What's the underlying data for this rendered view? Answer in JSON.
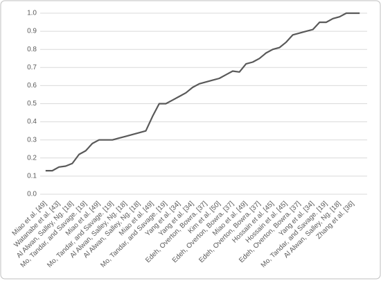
{
  "chart_data": {
    "type": "line",
    "categories": [
      "Miao et al. [49]",
      null,
      "Watanabe et al. [43]",
      null,
      "Al Alwan, Salley, Ng. [18]",
      null,
      "Mo, Tandar, and Savage. [19]",
      null,
      "Miao et al. [49]",
      null,
      "Mo, Tandar, and Savage. [19]",
      null,
      "Al Alwan, Salley, Ng. [18]",
      null,
      "Al Alwan, Salley, Ng. [18]",
      null,
      "Miao et al. [49]",
      null,
      "Mo, Tandar, and Savage. [19]",
      null,
      "Yang et al. [34]",
      null,
      "Yang et al. [34]",
      null,
      "Edeh, Overton, Bowra. [37]",
      null,
      "Kim et al. [50]",
      null,
      "Edeh, Overton, Bowra. [37]",
      null,
      "Miao et al. [49]",
      null,
      "Edeh, Overton, Bowra. [37]",
      null,
      "Hossain et al. [45]",
      null,
      "Hossain et al. [45]",
      null,
      "Edeh, Overton, Bowra. [37]",
      null,
      "Yang et al. [34]",
      null,
      "Mo, Tandar, and Savage. [19]",
      null,
      "Al Alwan, Salley, Ng. [18]",
      null,
      "Zhang et al. [36]",
      null
    ],
    "values": [
      0.13,
      0.13,
      0.15,
      0.155,
      0.17,
      0.22,
      0.24,
      0.28,
      0.3,
      0.3,
      0.3,
      0.31,
      0.32,
      0.33,
      0.34,
      0.35,
      0.43,
      0.5,
      0.5,
      0.52,
      0.54,
      0.56,
      0.59,
      0.61,
      0.62,
      0.63,
      0.64,
      0.66,
      0.68,
      0.675,
      0.72,
      0.73,
      0.75,
      0.78,
      0.8,
      0.81,
      0.84,
      0.88,
      0.89,
      0.9,
      0.91,
      0.95,
      0.95,
      0.97,
      0.98,
      1.0,
      1.0,
      1.0
    ],
    "color": "#595959",
    "ylim": [
      0,
      1
    ],
    "yticks": [
      {
        "value": 0,
        "label": "0.0"
      },
      0.1,
      0.2,
      0.3,
      0.4,
      0.5,
      0.6,
      0.7,
      0.8,
      0.9,
      {
        "value": 1,
        "label": "1.0"
      }
    ],
    "grid": true
  }
}
